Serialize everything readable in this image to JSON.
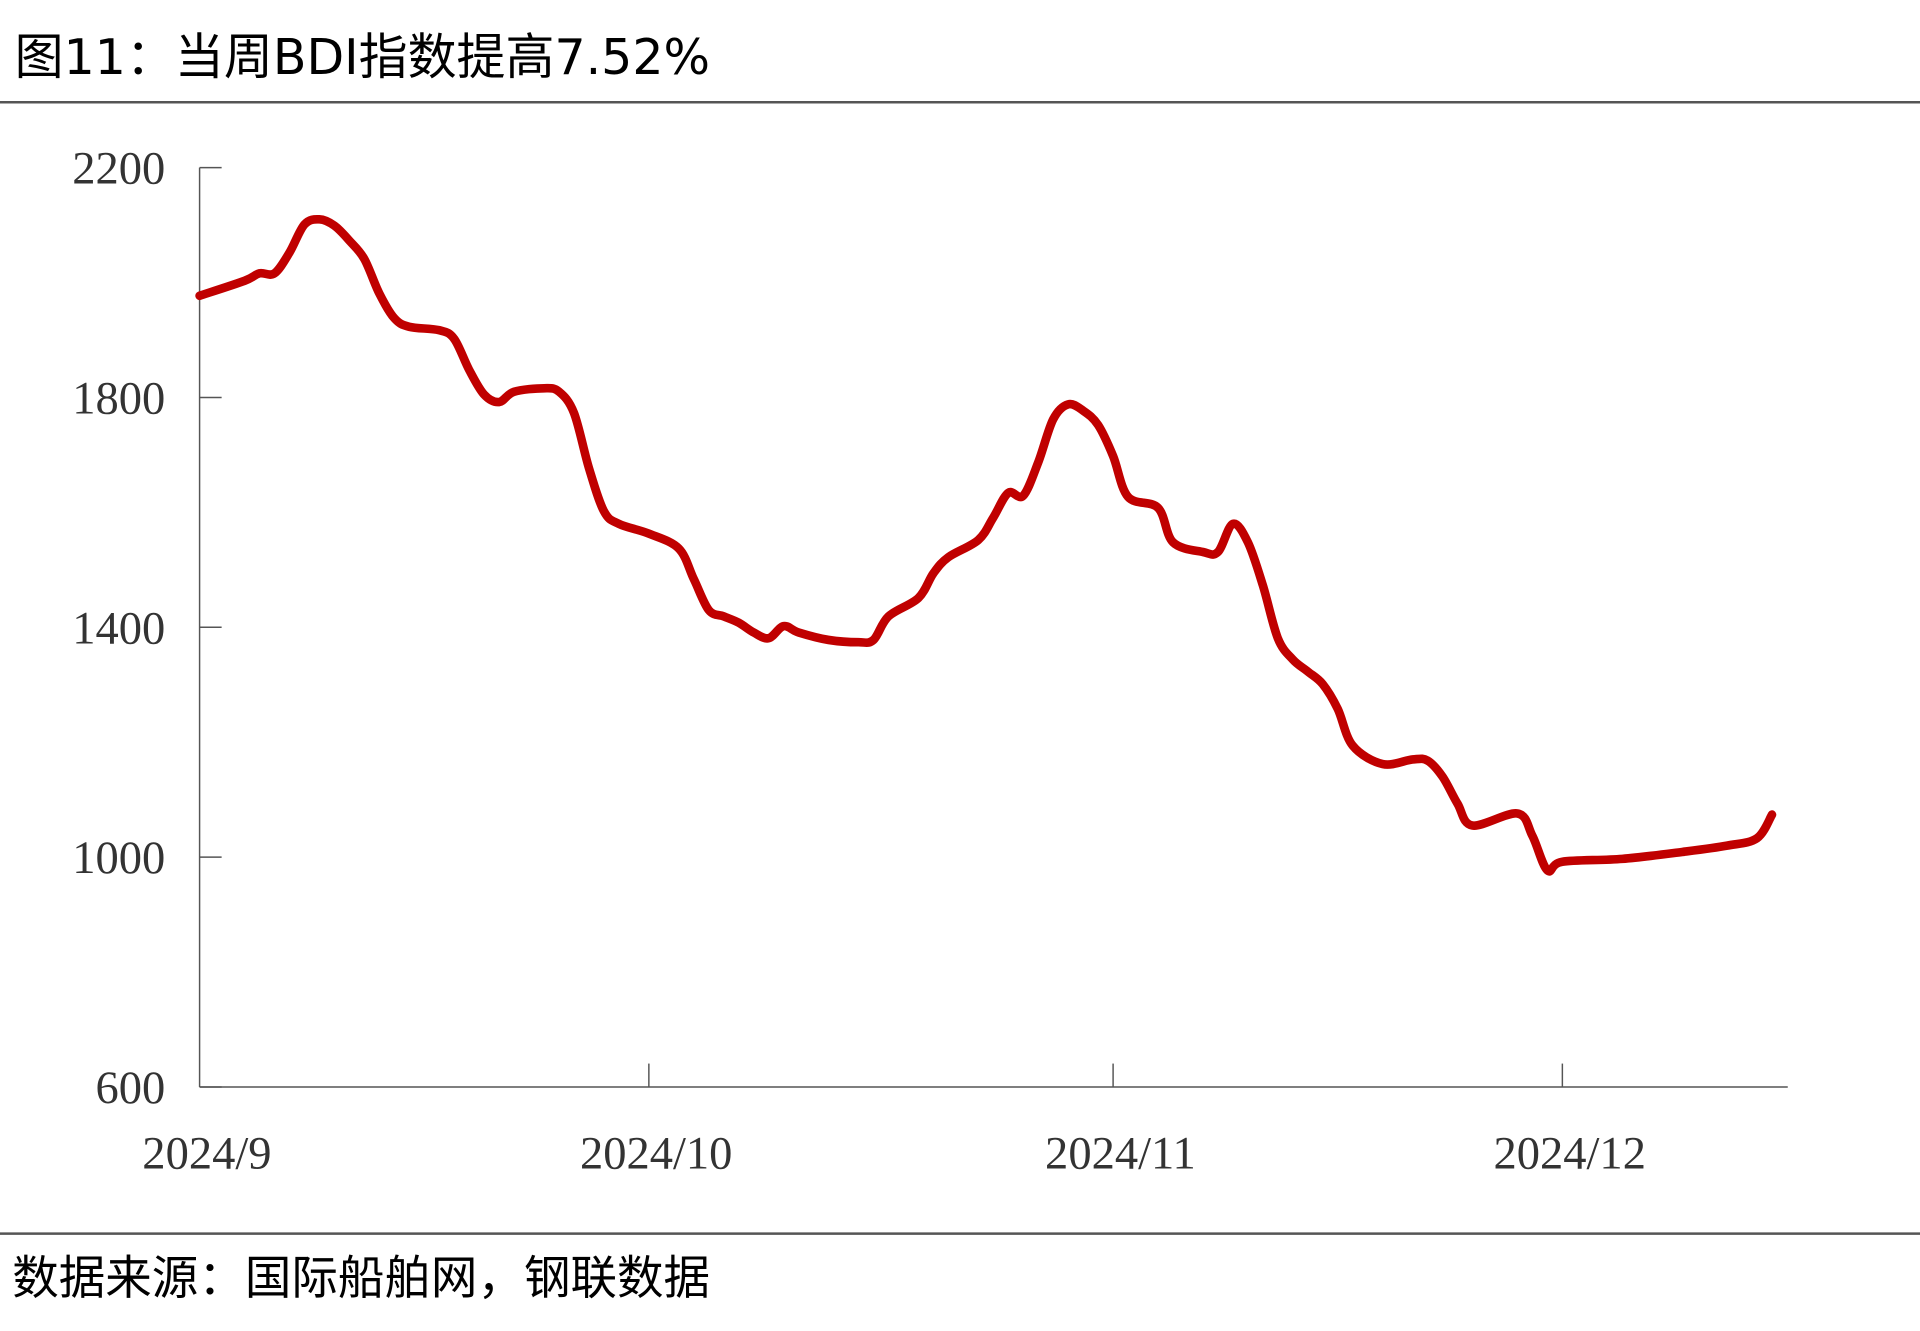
{
  "header": {
    "title": "图11：当周BDI指数提高7.52%"
  },
  "footer": {
    "source": "数据来源：国际船舶网，钢联数据"
  },
  "chart_data": {
    "type": "line",
    "title": "图11：当周BDI指数提高7.52%",
    "xlabel": "",
    "ylabel": "",
    "ylim": [
      600,
      2200
    ],
    "yticks": [
      600,
      1000,
      1400,
      1800,
      2200
    ],
    "xlim": [
      "2024-09-01",
      "2024-12-31"
    ],
    "xticks": [
      {
        "date": "2024-09-01",
        "label": "2024/9"
      },
      {
        "date": "2024-10-01",
        "label": "2024/10"
      },
      {
        "date": "2024-11-01",
        "label": "2024/11"
      },
      {
        "date": "2024-12-01",
        "label": "2024/12"
      }
    ],
    "grid": false,
    "legend": "none",
    "series": [
      {
        "color": "#C00000",
        "x": [
          "2024-09-01",
          "2024-09-04",
          "2024-09-05",
          "2024-09-06",
          "2024-09-07",
          "2024-09-08",
          "2024-09-09",
          "2024-09-10",
          "2024-09-11",
          "2024-09-12",
          "2024-09-13",
          "2024-09-14",
          "2024-09-15",
          "2024-09-17",
          "2024-09-18",
          "2024-09-19",
          "2024-09-20",
          "2024-09-21",
          "2024-09-22",
          "2024-09-24",
          "2024-09-25",
          "2024-09-26",
          "2024-09-27",
          "2024-09-28",
          "2024-09-29",
          "2024-10-01",
          "2024-10-03",
          "2024-10-04",
          "2024-10-05",
          "2024-10-06",
          "2024-10-07",
          "2024-10-08",
          "2024-10-09",
          "2024-10-10",
          "2024-10-11",
          "2024-10-13",
          "2024-10-15",
          "2024-10-16",
          "2024-10-17",
          "2024-10-19",
          "2024-10-20",
          "2024-10-21",
          "2024-10-23",
          "2024-10-24",
          "2024-10-25",
          "2024-10-26",
          "2024-10-27",
          "2024-10-28",
          "2024-10-29",
          "2024-10-30",
          "2024-10-31",
          "2024-11-01",
          "2024-11-02",
          "2024-11-04",
          "2024-11-05",
          "2024-11-07",
          "2024-11-08",
          "2024-11-09",
          "2024-11-10",
          "2024-11-11",
          "2024-11-12",
          "2024-11-13",
          "2024-11-14",
          "2024-11-15",
          "2024-11-16",
          "2024-11-17",
          "2024-11-19",
          "2024-11-21",
          "2024-11-22",
          "2024-11-23",
          "2024-11-24",
          "2024-11-25",
          "2024-11-28",
          "2024-11-29",
          "2024-11-30",
          "2024-12-01",
          "2024-12-05",
          "2024-12-09",
          "2024-12-12",
          "2024-12-14",
          "2024-12-15"
        ],
        "y": [
          1977,
          2003,
          2016,
          2016,
          2052,
          2101,
          2110,
          2099,
          2073,
          2041,
          1981,
          1938,
          1923,
          1917,
          1902,
          1848,
          1805,
          1792,
          1810,
          1816,
          1810,
          1773,
          1677,
          1602,
          1580,
          1563,
          1537,
          1484,
          1430,
          1419,
          1408,
          1391,
          1381,
          1402,
          1391,
          1378,
          1374,
          1378,
          1419,
          1451,
          1494,
          1522,
          1552,
          1591,
          1634,
          1629,
          1687,
          1762,
          1788,
          1777,
          1752,
          1698,
          1627,
          1608,
          1548,
          1531,
          1531,
          1580,
          1548,
          1473,
          1381,
          1344,
          1323,
          1301,
          1258,
          1194,
          1162,
          1170,
          1168,
          1140,
          1093,
          1055,
          1076,
          1037,
          977,
          992,
          997,
          1009,
          1020,
          1033,
          1074
        ]
      }
    ]
  }
}
